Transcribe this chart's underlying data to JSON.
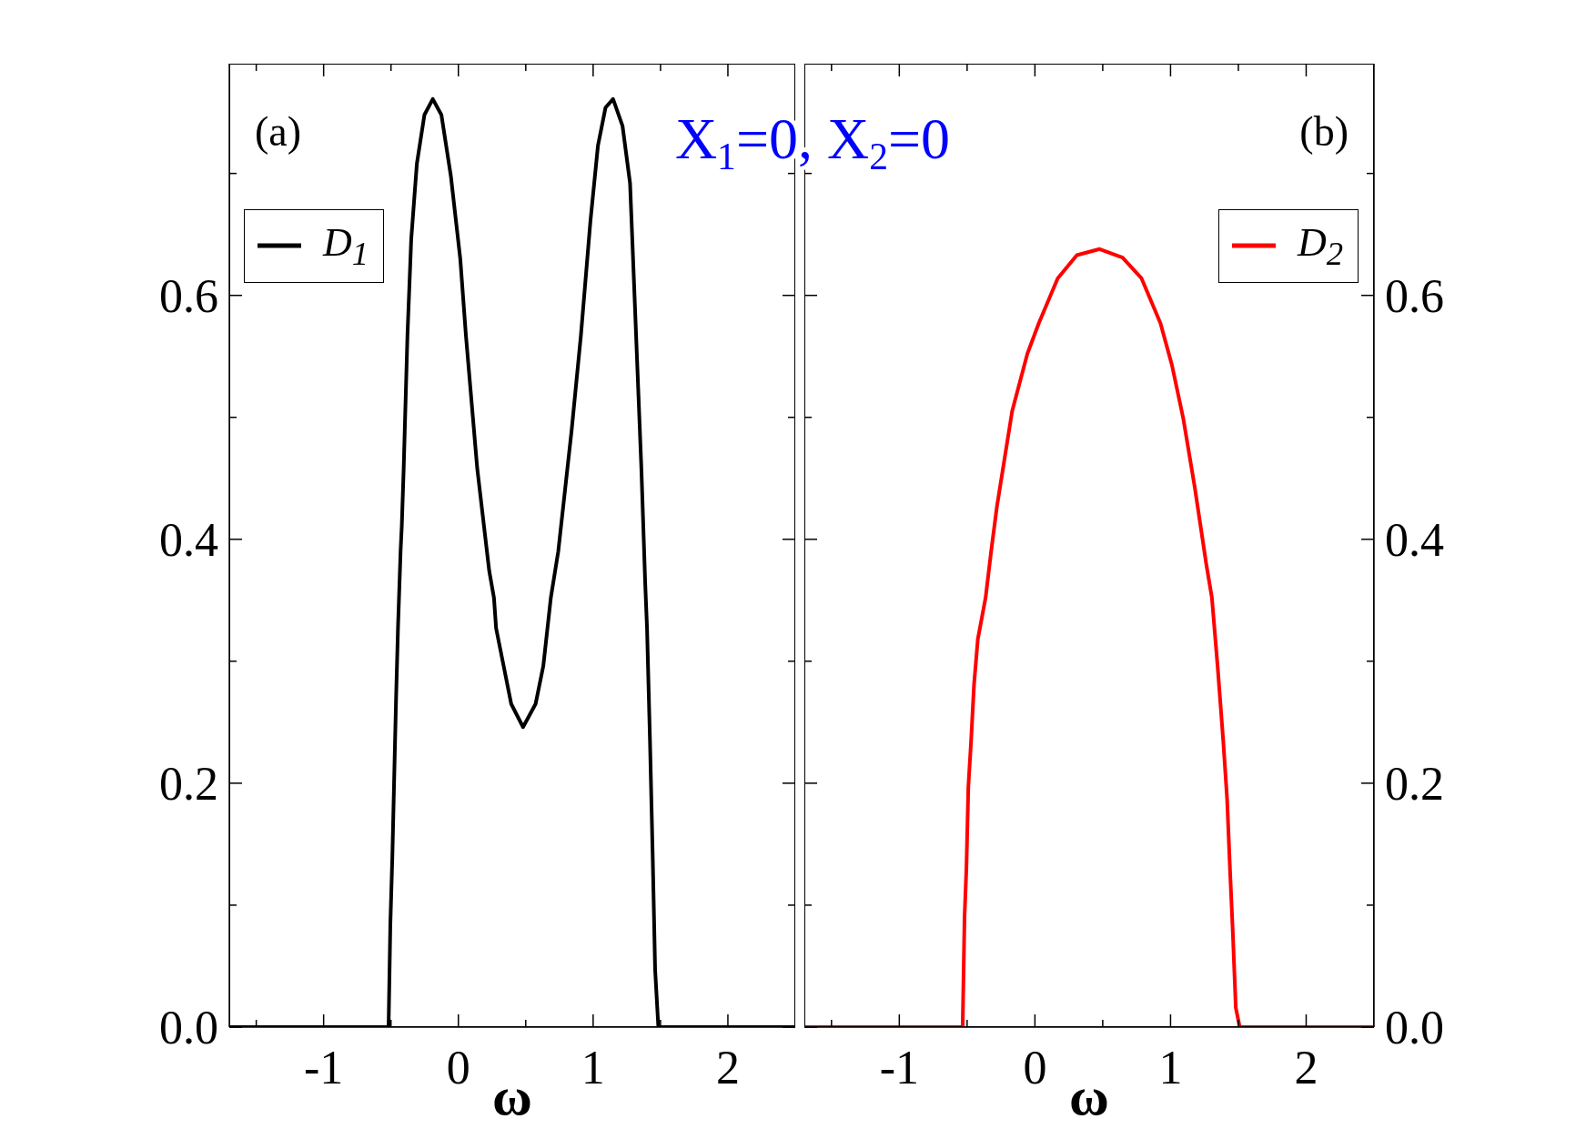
{
  "chart_data": [
    {
      "type": "line",
      "title": "X$_{1}$=0, X$_{2}$=0",
      "xlabel": "ω",
      "annotations": [
        "(a)"
      ],
      "legend": "top left",
      "xlim": [
        -1.7,
        2.5
      ],
      "xticks": [
        {
          "value": -1.5,
          "label": null
        },
        -1,
        {
          "value": -0.5,
          "label": null
        },
        0,
        {
          "value": 0.5,
          "label": null
        },
        1,
        {
          "value": 1.5,
          "label": null
        },
        2
      ],
      "ylim": [
        0,
        0.79
      ],
      "yticks": [
        {
          "value": 0,
          "label": "0.0"
        },
        {
          "value": 0.1,
          "label": null
        },
        {
          "value": 0.2,
          "label": "0.2"
        },
        {
          "value": 0.3,
          "label": null
        },
        {
          "value": 0.4,
          "label": "0.4"
        },
        {
          "value": 0.5,
          "label": null
        },
        {
          "value": 0.6,
          "label": "0.6"
        },
        {
          "value": 0.7,
          "label": null
        }
      ],
      "series": [
        {
          "name": "D$_{1}$",
          "color": "#000000",
          "x": [
            -1.7,
            -0.546,
            -0.518,
            -0.505,
            -0.49,
            -0.476,
            -0.462,
            -0.448,
            -0.429,
            -0.42,
            -0.406,
            -0.378,
            -0.35,
            -0.308,
            -0.252,
            -0.19,
            -0.126,
            -0.056,
            0.014,
            0.056,
            0.14,
            0.229,
            0.264,
            0.28,
            0.336,
            0.392,
            0.48,
            0.573,
            0.63,
            0.686,
            0.741,
            0.84,
            0.909,
            0.98,
            1.036,
            1.092,
            1.148,
            1.218,
            1.274,
            1.302,
            1.33,
            1.358,
            1.386,
            1.4,
            1.422,
            1.442,
            1.46,
            1.484,
            2.5
          ],
          "values": [
            0,
            0,
            0,
            0.084,
            0.14,
            0.206,
            0.271,
            0.328,
            0.39,
            0.411,
            0.458,
            0.567,
            0.646,
            0.708,
            0.748,
            0.761,
            0.748,
            0.698,
            0.63,
            0.567,
            0.458,
            0.374,
            0.352,
            0.327,
            0.296,
            0.265,
            0.246,
            0.265,
            0.296,
            0.352,
            0.39,
            0.489,
            0.567,
            0.661,
            0.723,
            0.754,
            0.761,
            0.739,
            0.692,
            0.614,
            0.536,
            0.458,
            0.365,
            0.327,
            0.234,
            0.14,
            0.047,
            0,
            0
          ]
        }
      ]
    },
    {
      "type": "line",
      "xlabel": "ω",
      "annotations": [
        "(b)"
      ],
      "legend": "top right",
      "xlim": [
        -1.7,
        2.5
      ],
      "xticks": [
        {
          "value": -1.5,
          "label": null
        },
        -1,
        {
          "value": -0.5,
          "label": null
        },
        0,
        {
          "value": 0.5,
          "label": null
        },
        1,
        {
          "value": 1.5,
          "label": null
        },
        2
      ],
      "ylim": [
        0,
        0.79
      ],
      "yticks": [
        {
          "value": 0,
          "label": "0.0"
        },
        {
          "value": 0.1,
          "label": null
        },
        {
          "value": 0.2,
          "label": "0.2"
        },
        {
          "value": 0.3,
          "label": null
        },
        {
          "value": 0.4,
          "label": "0.4"
        },
        {
          "value": 0.5,
          "label": null
        },
        {
          "value": 0.6,
          "label": "0.6"
        },
        {
          "value": 0.7,
          "label": null
        }
      ],
      "series": [
        {
          "name": "D$_{2}$",
          "color": "#ff0000",
          "x": [
            -1.7,
            -0.533,
            -0.519,
            -0.505,
            -0.491,
            -0.471,
            -0.449,
            -0.421,
            -0.364,
            -0.323,
            -0.28,
            -0.168,
            -0.056,
            0.028,
            0.168,
            0.309,
            0.477,
            0.646,
            0.786,
            0.926,
            1.01,
            1.094,
            1.178,
            1.263,
            1.305,
            1.347,
            1.389,
            1.417,
            1.44,
            1.459,
            1.481,
            1.51,
            2.5
          ],
          "values": [
            0,
            0,
            0.09,
            0.131,
            0.197,
            0.234,
            0.281,
            0.318,
            0.352,
            0.39,
            0.427,
            0.505,
            0.552,
            0.577,
            0.614,
            0.633,
            0.638,
            0.631,
            0.614,
            0.577,
            0.543,
            0.499,
            0.443,
            0.38,
            0.352,
            0.296,
            0.234,
            0.187,
            0.125,
            0.078,
            0.016,
            0,
            0
          ]
        }
      ]
    }
  ]
}
